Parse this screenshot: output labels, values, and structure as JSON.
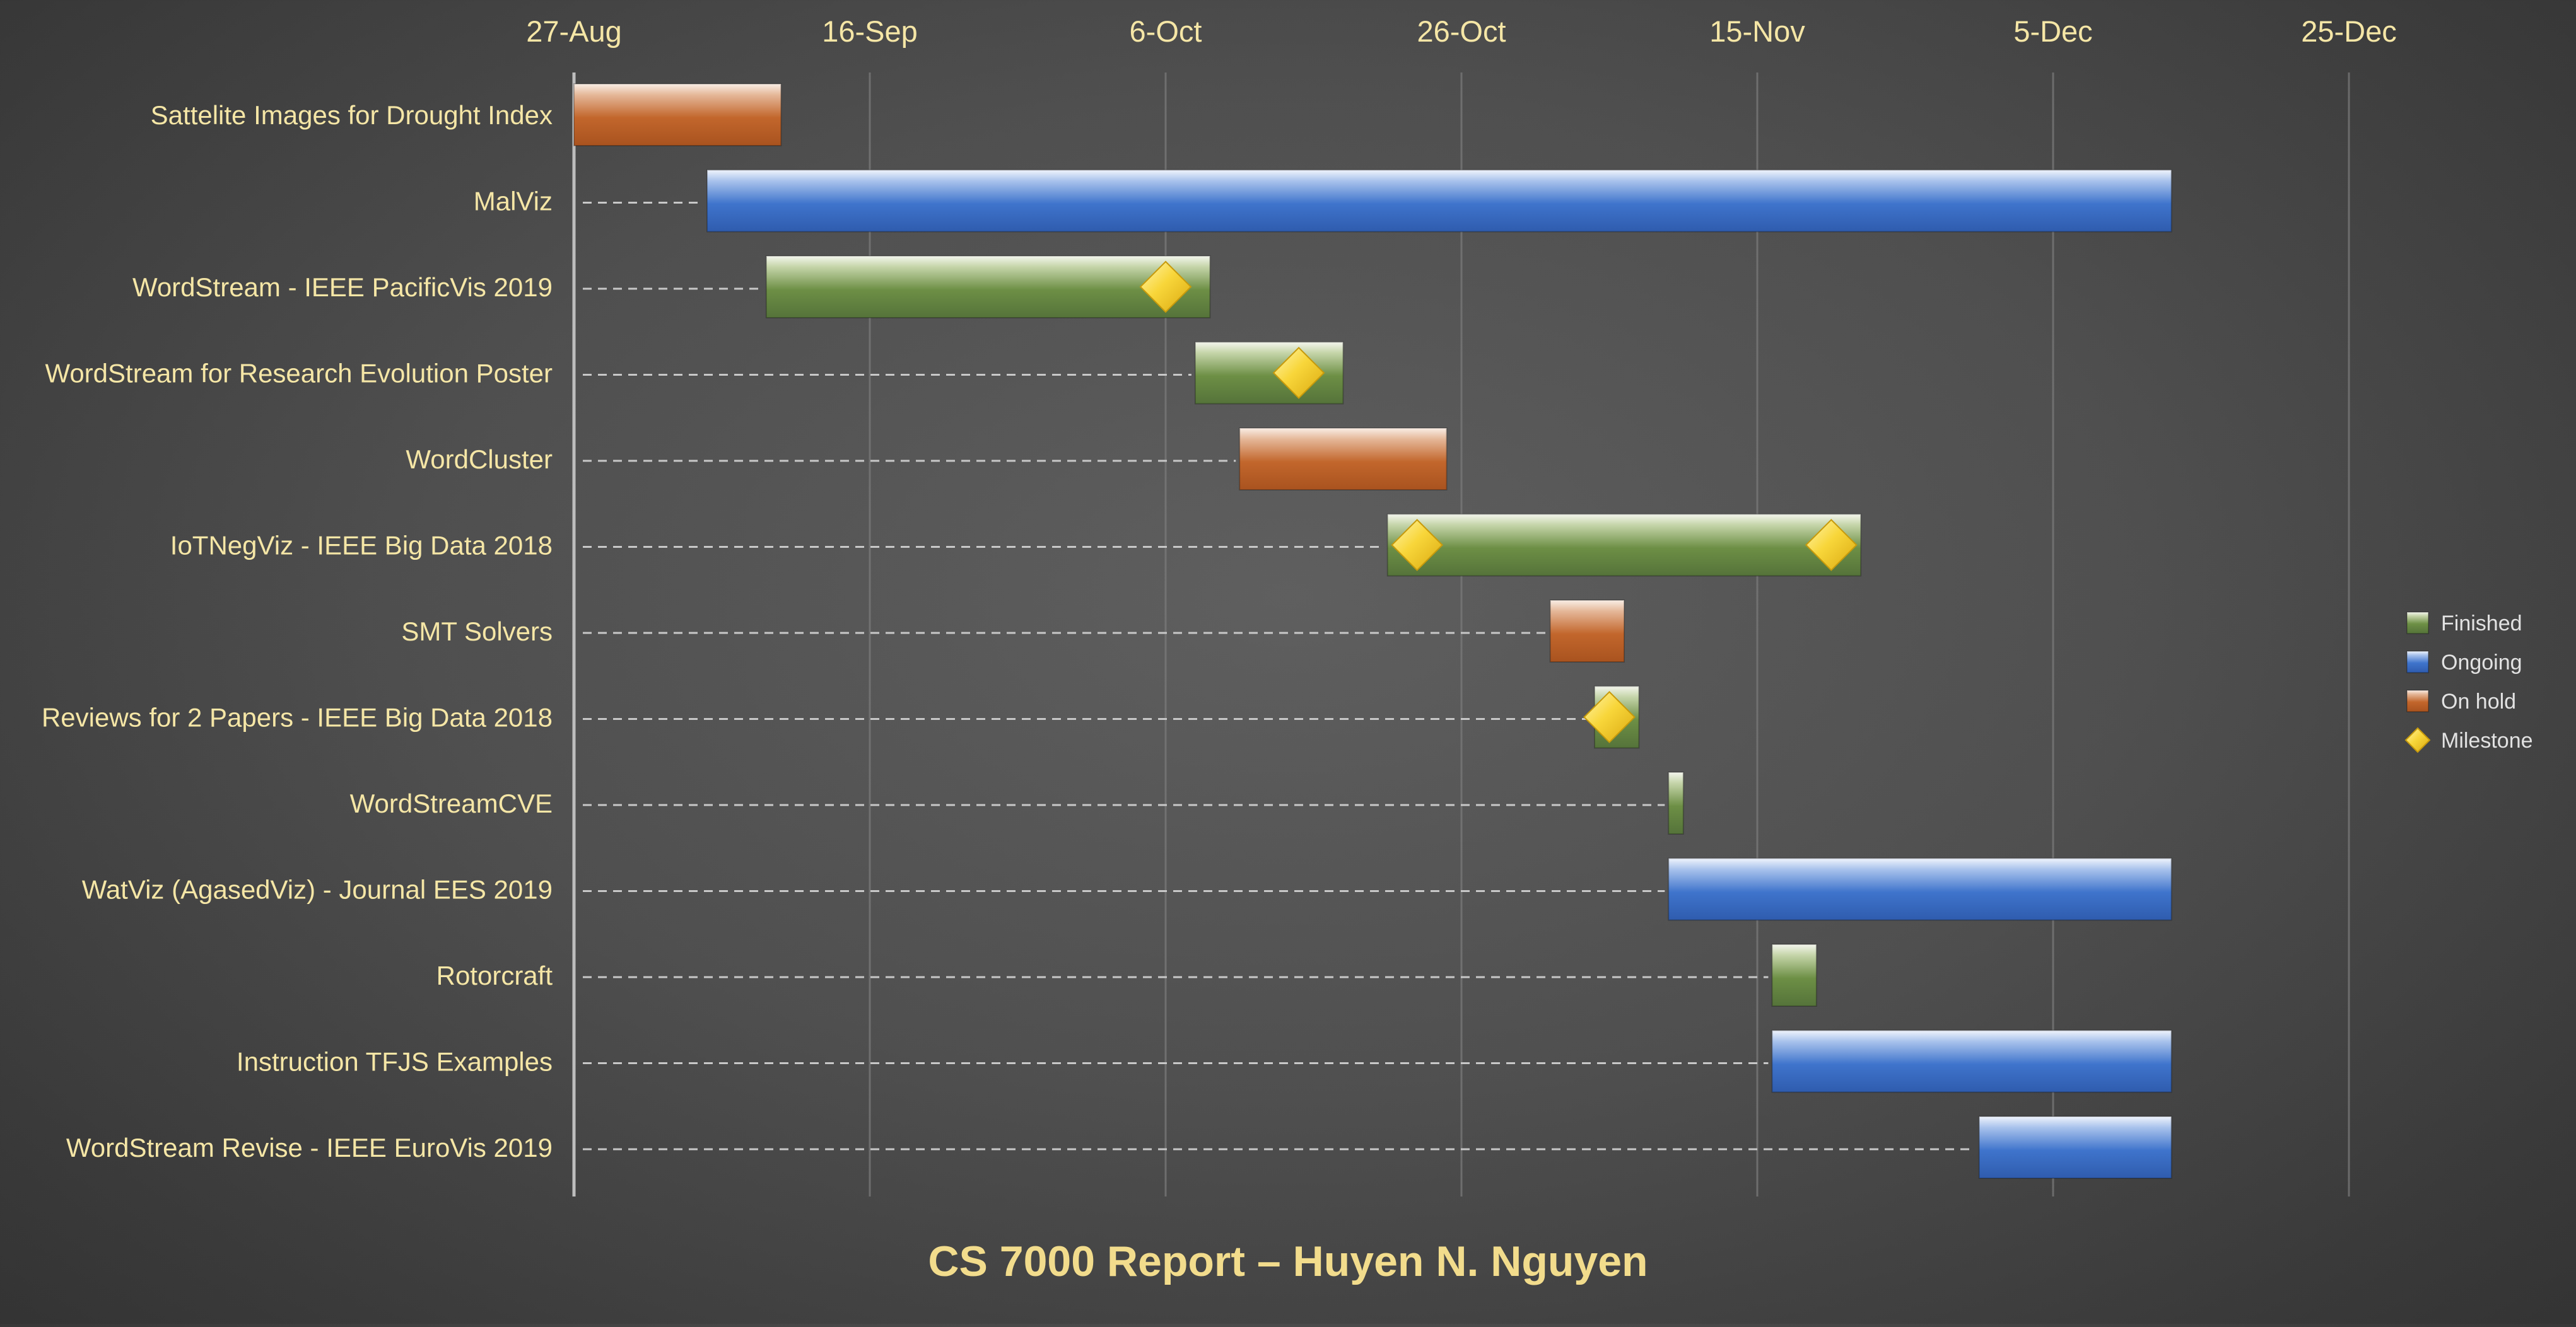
{
  "chart_data": {
    "type": "gantt",
    "title": "CS 7000 Report – Huyen N. Nguyen",
    "x_axis": {
      "ticks": [
        "27-Aug",
        "16-Sep",
        "6-Oct",
        "26-Oct",
        "15-Nov",
        "5-Dec",
        "25-Dec"
      ],
      "range": [
        "2018-08-27",
        "2018-12-25"
      ]
    },
    "grid": true,
    "legend": {
      "position": "right",
      "entries": [
        {
          "key": "finished",
          "label": "Finished"
        },
        {
          "key": "ongoing",
          "label": "Ongoing"
        },
        {
          "key": "onhold",
          "label": "On hold"
        },
        {
          "key": "milestone",
          "label": "Milestone"
        }
      ]
    },
    "colors": {
      "finished": "#6a8c42",
      "ongoing": "#3e72c8",
      "onhold": "#c0632a",
      "milestone": "#f2c81e",
      "text": "#f5e6a6",
      "title": "#f2dc8c",
      "legend_text": "#e2e2e2"
    },
    "tasks": [
      {
        "name": "Sattelite Images for Drought Index",
        "start": "2018-08-27",
        "end": "2018-09-10",
        "status": "onhold",
        "milestones": []
      },
      {
        "name": "MalViz",
        "start": "2018-09-05",
        "end": "2018-12-13",
        "status": "ongoing",
        "milestones": []
      },
      {
        "name": "WordStream - IEEE PacificVis 2019",
        "start": "2018-09-09",
        "end": "2018-10-09",
        "status": "finished",
        "milestones": [
          "2018-10-06"
        ]
      },
      {
        "name": "WordStream for Research Evolution Poster",
        "start": "2018-10-08",
        "end": "2018-10-18",
        "status": "finished",
        "milestones": [
          "2018-10-15"
        ]
      },
      {
        "name": "WordCluster",
        "start": "2018-10-11",
        "end": "2018-10-25",
        "status": "onhold",
        "milestones": []
      },
      {
        "name": "IoTNegViz - IEEE Big Data 2018",
        "start": "2018-10-21",
        "end": "2018-11-22",
        "status": "finished",
        "milestones": [
          "2018-10-23",
          "2018-11-20"
        ]
      },
      {
        "name": "SMT Solvers",
        "start": "2018-11-01",
        "end": "2018-11-06",
        "status": "onhold",
        "milestones": []
      },
      {
        "name": "Reviews for 2 Papers - IEEE Big Data 2018",
        "start": "2018-11-04",
        "end": "2018-11-07",
        "status": "finished",
        "milestones": [
          "2018-11-05"
        ]
      },
      {
        "name": "WordStreamCVE",
        "start": "2018-11-09",
        "end": "2018-11-10",
        "status": "finished",
        "milestones": []
      },
      {
        "name": "WatViz (AgasedViz) - Journal EES 2019",
        "start": "2018-11-09",
        "end": "2018-12-13",
        "status": "ongoing",
        "milestones": []
      },
      {
        "name": "Rotorcraft",
        "start": "2018-11-16",
        "end": "2018-11-19",
        "status": "finished",
        "milestones": []
      },
      {
        "name": "Instruction TFJS Examples",
        "start": "2018-11-16",
        "end": "2018-12-13",
        "status": "ongoing",
        "milestones": []
      },
      {
        "name": "WordStream Revise - IEEE EuroVis 2019",
        "start": "2018-11-30",
        "end": "2018-12-13",
        "status": "ongoing",
        "milestones": []
      }
    ]
  }
}
